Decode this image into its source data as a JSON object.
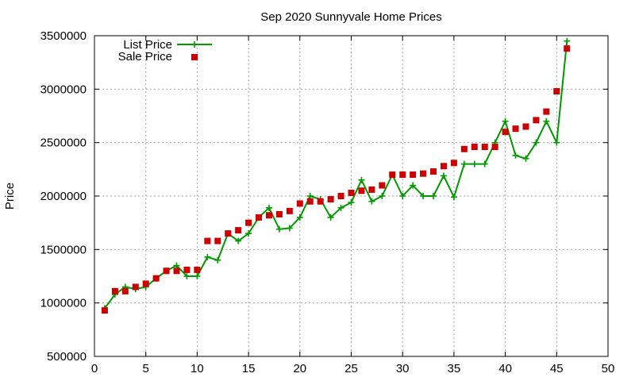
{
  "chart_data": {
    "type": "line",
    "title": "Sep 2020 Sunnyvale Home Prices",
    "xlabel": "",
    "ylabel": "Price",
    "xlim": [
      0,
      50
    ],
    "ylim": [
      500000,
      3500000
    ],
    "xticks": [
      "0",
      "5",
      "10",
      "15",
      "20",
      "25",
      "30",
      "35",
      "40",
      "45",
      "50"
    ],
    "yticks": [
      "500000",
      "1000000",
      "1500000",
      "2000000",
      "2500000",
      "3000000",
      "3500000"
    ],
    "grid": true,
    "legend_position": "top-left",
    "series": [
      {
        "name": "List Price",
        "style": "line-plus",
        "color": "#009900",
        "x": [
          1,
          2,
          3,
          4,
          5,
          6,
          7,
          8,
          9,
          10,
          11,
          12,
          13,
          14,
          15,
          16,
          17,
          18,
          19,
          20,
          21,
          22,
          23,
          24,
          25,
          26,
          27,
          28,
          29,
          30,
          31,
          32,
          33,
          34,
          35,
          36,
          37,
          38,
          39,
          40,
          41,
          42,
          43,
          44,
          45,
          46
        ],
        "y": [
          950000,
          1080000,
          1150000,
          1130000,
          1150000,
          1230000,
          1300000,
          1350000,
          1250000,
          1250000,
          1430000,
          1400000,
          1650000,
          1580000,
          1650000,
          1800000,
          1890000,
          1690000,
          1700000,
          1800000,
          2000000,
          1970000,
          1800000,
          1890000,
          1940000,
          2150000,
          1950000,
          2000000,
          2200000,
          2000000,
          2100000,
          2000000,
          2000000,
          2190000,
          1990000,
          2300000,
          2300000,
          2300000,
          2500000,
          2700000,
          2380000,
          2350000,
          2500000,
          2700000,
          2500000,
          3450000
        ]
      },
      {
        "name": "Sale Price",
        "style": "square",
        "color": "#cc0000",
        "x": [
          1,
          2,
          3,
          4,
          5,
          6,
          7,
          8,
          9,
          10,
          11,
          12,
          13,
          14,
          15,
          16,
          17,
          18,
          19,
          20,
          21,
          22,
          23,
          24,
          25,
          26,
          27,
          28,
          29,
          30,
          31,
          32,
          33,
          34,
          35,
          36,
          37,
          38,
          39,
          40,
          41,
          42,
          43,
          44,
          45,
          46
        ],
        "y": [
          930000,
          1110000,
          1110000,
          1150000,
          1180000,
          1230000,
          1300000,
          1300000,
          1310000,
          1310000,
          1580000,
          1580000,
          1650000,
          1680000,
          1750000,
          1800000,
          1820000,
          1830000,
          1860000,
          1930000,
          1950000,
          1950000,
          1970000,
          2000000,
          2030000,
          2050000,
          2060000,
          2100000,
          2200000,
          2200000,
          2200000,
          2210000,
          2230000,
          2280000,
          2310000,
          2440000,
          2460000,
          2460000,
          2460000,
          2600000,
          2630000,
          2650000,
          2710000,
          2790000,
          2980000,
          3380000
        ]
      }
    ]
  }
}
